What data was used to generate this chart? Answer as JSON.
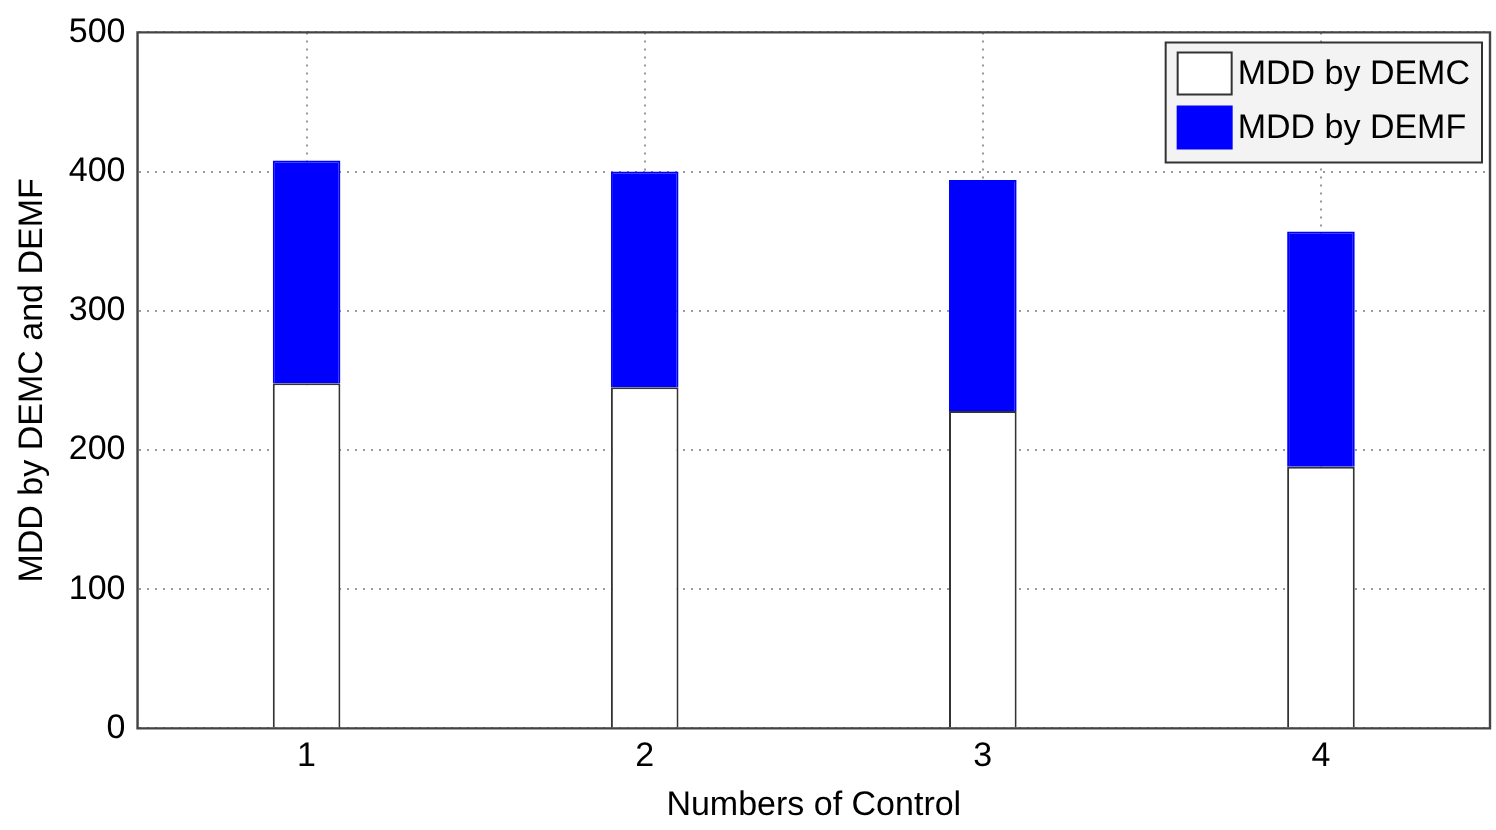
{
  "chart_data": {
    "type": "bar",
    "xlabel": "Numbers of Control",
    "ylabel": "MDD by DEMC and DEMF",
    "categories": [
      "1",
      "2",
      "3",
      "4"
    ],
    "stacked": true,
    "series": [
      {
        "name": "MDD by DEMC",
        "color": "#ffffff",
        "values": [
          248,
          245,
          228,
          188
        ]
      },
      {
        "name": "MDD by DEMF",
        "color": "#0000ff",
        "values": [
          160,
          155,
          166,
          169
        ]
      }
    ],
    "ylim": [
      0,
      500
    ],
    "yticks": [
      0,
      100,
      200,
      300,
      400,
      500
    ],
    "grid": true,
    "legend": "top right"
  }
}
